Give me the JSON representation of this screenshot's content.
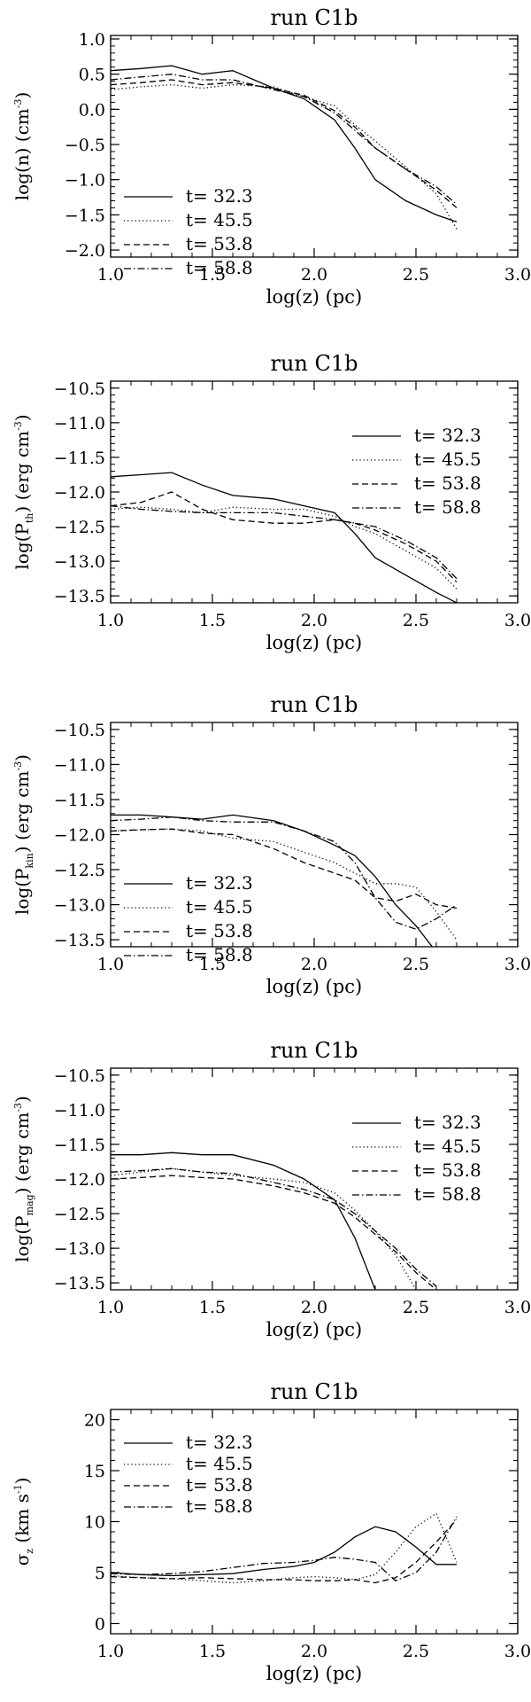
{
  "chart_data": [
    {
      "type": "line",
      "title": "run C1b",
      "xlabel": "log(z) (pc)",
      "ylabel": {
        "main": "log(n) (cm",
        "sup": "-3",
        "close": ")"
      },
      "xlim": [
        1.0,
        3.0
      ],
      "ylim": [
        -2.1,
        1.05
      ],
      "xticks": [
        1.0,
        1.5,
        2.0,
        2.5,
        3.0
      ],
      "xtick_labels": [
        "1.0",
        "1.5",
        "2.0",
        "2.5",
        "3.0"
      ],
      "yticks": [
        1.0,
        0.5,
        0.0,
        -0.5,
        -1.0,
        -1.5,
        -2.0
      ],
      "ytick_labels": [
        "1.0",
        "0.5",
        "0.0",
        "−0.5",
        "−1.0",
        "−1.5",
        "−2.0"
      ],
      "legend_placement": "lower-left",
      "series": [
        {
          "name": "t= 32.3",
          "style": "solid",
          "x": [
            1.0,
            1.15,
            1.3,
            1.45,
            1.6,
            1.8,
            1.95,
            2.1,
            2.2,
            2.3,
            2.45,
            2.6,
            2.7
          ],
          "y": [
            0.55,
            0.58,
            0.62,
            0.5,
            0.55,
            0.3,
            0.15,
            -0.15,
            -0.55,
            -1.0,
            -1.3,
            -1.5,
            -1.6
          ]
        },
        {
          "name": "t= 45.5",
          "style": "dotted",
          "x": [
            1.0,
            1.15,
            1.3,
            1.45,
            1.6,
            1.8,
            1.95,
            2.1,
            2.2,
            2.3,
            2.45,
            2.6,
            2.7
          ],
          "y": [
            0.28,
            0.32,
            0.35,
            0.3,
            0.35,
            0.32,
            0.18,
            0.05,
            -0.22,
            -0.45,
            -0.82,
            -1.2,
            -1.7
          ]
        },
        {
          "name": "t= 53.8",
          "style": "dashed",
          "x": [
            1.0,
            1.15,
            1.3,
            1.45,
            1.6,
            1.8,
            1.95,
            2.1,
            2.2,
            2.3,
            2.45,
            2.6,
            2.7
          ],
          "y": [
            0.35,
            0.38,
            0.42,
            0.35,
            0.38,
            0.3,
            0.2,
            -0.02,
            -0.25,
            -0.55,
            -0.85,
            -1.15,
            -1.4
          ]
        },
        {
          "name": "t= 58.8",
          "style": "dashdot",
          "x": [
            1.0,
            1.15,
            1.3,
            1.45,
            1.6,
            1.8,
            1.95,
            2.1,
            2.2,
            2.3,
            2.45,
            2.6,
            2.7
          ],
          "y": [
            0.42,
            0.46,
            0.5,
            0.42,
            0.42,
            0.28,
            0.18,
            -0.05,
            -0.3,
            -0.55,
            -0.85,
            -1.1,
            -1.35
          ]
        }
      ]
    },
    {
      "type": "line",
      "title": "run C1b",
      "xlabel": "log(z) (pc)",
      "ylabel": {
        "main": "log(P",
        "sub": "th",
        "mid": ") (erg cm",
        "sup": "-3",
        "close": ")"
      },
      "xlim": [
        1.0,
        3.0
      ],
      "ylim": [
        -13.6,
        -10.4
      ],
      "xticks": [
        1.0,
        1.5,
        2.0,
        2.5,
        3.0
      ],
      "xtick_labels": [
        "1.0",
        "1.5",
        "2.0",
        "2.5",
        "3.0"
      ],
      "yticks": [
        -10.5,
        -11.0,
        -11.5,
        -12.0,
        -12.5,
        -13.0,
        -13.5
      ],
      "ytick_labels": [
        "−10.5",
        "−11.0",
        "−11.5",
        "−12.0",
        "−12.5",
        "−13.0",
        "−13.5"
      ],
      "legend_placement": "upper-right",
      "series": [
        {
          "name": "t= 32.3",
          "style": "solid",
          "x": [
            1.0,
            1.15,
            1.3,
            1.45,
            1.6,
            1.8,
            1.95,
            2.1,
            2.2,
            2.3,
            2.45,
            2.6,
            2.7
          ],
          "y": [
            -11.78,
            -11.75,
            -11.72,
            -11.9,
            -12.05,
            -12.1,
            -12.2,
            -12.3,
            -12.6,
            -12.95,
            -13.2,
            -13.45,
            -13.6
          ]
        },
        {
          "name": "t= 45.5",
          "style": "dotted",
          "x": [
            1.0,
            1.15,
            1.3,
            1.45,
            1.6,
            1.8,
            1.95,
            2.1,
            2.2,
            2.3,
            2.45,
            2.6,
            2.7
          ],
          "y": [
            -12.25,
            -12.22,
            -12.25,
            -12.3,
            -12.22,
            -12.25,
            -12.25,
            -12.35,
            -12.5,
            -12.6,
            -12.85,
            -13.1,
            -13.4
          ]
        },
        {
          "name": "t= 53.8",
          "style": "dashed",
          "x": [
            1.0,
            1.15,
            1.3,
            1.45,
            1.6,
            1.8,
            1.95,
            2.1,
            2.2,
            2.3,
            2.45,
            2.6,
            2.7
          ],
          "y": [
            -12.2,
            -12.15,
            -12.0,
            -12.25,
            -12.4,
            -12.45,
            -12.45,
            -12.4,
            -12.45,
            -12.55,
            -12.75,
            -13.0,
            -13.3
          ]
        },
        {
          "name": "t= 58.8",
          "style": "dashdot",
          "x": [
            1.0,
            1.15,
            1.3,
            1.45,
            1.6,
            1.8,
            1.95,
            2.1,
            2.2,
            2.3,
            2.45,
            2.6,
            2.7
          ],
          "y": [
            -12.2,
            -12.25,
            -12.28,
            -12.3,
            -12.3,
            -12.3,
            -12.35,
            -12.4,
            -12.45,
            -12.5,
            -12.7,
            -12.95,
            -13.25
          ]
        }
      ]
    },
    {
      "type": "line",
      "title": "run C1b",
      "xlabel": "log(z) (pc)",
      "ylabel": {
        "main": "log(P",
        "sub": "kin",
        "mid": ") (erg cm",
        "sup": "-3",
        "close": ")"
      },
      "xlim": [
        1.0,
        3.0
      ],
      "ylim": [
        -13.6,
        -10.4
      ],
      "xticks": [
        1.0,
        1.5,
        2.0,
        2.5,
        3.0
      ],
      "xtick_labels": [
        "1.0",
        "1.5",
        "2.0",
        "2.5",
        "3.0"
      ],
      "yticks": [
        -10.5,
        -11.0,
        -11.5,
        -12.0,
        -12.5,
        -13.0,
        -13.5
      ],
      "ytick_labels": [
        "−10.5",
        "−11.0",
        "−11.5",
        "−12.0",
        "−12.5",
        "−13.0",
        "−13.5"
      ],
      "legend_placement": "lower-left",
      "series": [
        {
          "name": "t= 32.3",
          "style": "solid",
          "x": [
            1.0,
            1.15,
            1.3,
            1.45,
            1.6,
            1.8,
            1.95,
            2.1,
            2.2,
            2.3,
            2.4,
            2.5,
            2.58
          ],
          "y": [
            -11.72,
            -11.72,
            -11.75,
            -11.78,
            -11.72,
            -11.8,
            -11.95,
            -12.15,
            -12.3,
            -12.6,
            -13.0,
            -13.3,
            -13.6
          ]
        },
        {
          "name": "t= 45.5",
          "style": "dotted",
          "x": [
            1.0,
            1.15,
            1.3,
            1.45,
            1.6,
            1.8,
            1.95,
            2.1,
            2.2,
            2.3,
            2.4,
            2.5,
            2.6,
            2.7
          ],
          "y": [
            -11.95,
            -11.93,
            -11.92,
            -11.95,
            -12.05,
            -12.1,
            -12.25,
            -12.4,
            -12.55,
            -12.7,
            -12.7,
            -12.75,
            -13.1,
            -13.5
          ]
        },
        {
          "name": "t= 53.8",
          "style": "dashed",
          "x": [
            1.0,
            1.15,
            1.3,
            1.45,
            1.6,
            1.8,
            1.95,
            2.1,
            2.2,
            2.3,
            2.4,
            2.5,
            2.6,
            2.7
          ],
          "y": [
            -11.95,
            -11.93,
            -11.92,
            -11.98,
            -12.0,
            -12.2,
            -12.4,
            -12.55,
            -12.65,
            -12.9,
            -12.95,
            -12.85,
            -13.0,
            -13.05
          ]
        },
        {
          "name": "t= 58.8",
          "style": "dashdot",
          "x": [
            1.0,
            1.15,
            1.3,
            1.45,
            1.6,
            1.8,
            1.95,
            2.1,
            2.2,
            2.3,
            2.4,
            2.5,
            2.6,
            2.7
          ],
          "y": [
            -11.8,
            -11.78,
            -11.75,
            -11.8,
            -11.82,
            -11.82,
            -11.95,
            -12.1,
            -12.4,
            -12.9,
            -13.25,
            -13.35,
            -13.2,
            -13.0
          ]
        }
      ]
    },
    {
      "type": "line",
      "title": "run C1b",
      "xlabel": "log(z) (pc)",
      "ylabel": {
        "main": "log(P",
        "sub": "mag",
        "mid": ") (erg cm",
        "sup": "-3",
        "close": ")"
      },
      "xlim": [
        1.0,
        3.0
      ],
      "ylim": [
        -13.6,
        -10.4
      ],
      "xticks": [
        1.0,
        1.5,
        2.0,
        2.5,
        3.0
      ],
      "xtick_labels": [
        "1.0",
        "1.5",
        "2.0",
        "2.5",
        "3.0"
      ],
      "yticks": [
        -10.5,
        -11.0,
        -11.5,
        -12.0,
        -12.5,
        -13.0,
        -13.5
      ],
      "ytick_labels": [
        "−10.5",
        "−11.0",
        "−11.5",
        "−12.0",
        "−12.5",
        "−13.0",
        "−13.5"
      ],
      "legend_placement": "upper-right",
      "series": [
        {
          "name": "t= 32.3",
          "style": "solid",
          "x": [
            1.0,
            1.15,
            1.3,
            1.45,
            1.6,
            1.8,
            1.95,
            2.1,
            2.2,
            2.3
          ],
          "y": [
            -11.65,
            -11.65,
            -11.62,
            -11.65,
            -11.65,
            -11.8,
            -12.0,
            -12.3,
            -12.85,
            -13.6
          ]
        },
        {
          "name": "t= 45.5",
          "style": "dotted",
          "x": [
            1.0,
            1.15,
            1.3,
            1.45,
            1.6,
            1.8,
            1.95,
            2.1,
            2.2,
            2.3,
            2.4,
            2.5
          ],
          "y": [
            -11.95,
            -11.9,
            -11.85,
            -11.9,
            -11.95,
            -12.0,
            -12.05,
            -12.2,
            -12.45,
            -12.75,
            -13.1,
            -13.6
          ]
        },
        {
          "name": "t= 53.8",
          "style": "dashed",
          "x": [
            1.0,
            1.15,
            1.3,
            1.45,
            1.6,
            1.8,
            1.95,
            2.1,
            2.2,
            2.3,
            2.4,
            2.5,
            2.6
          ],
          "y": [
            -12.0,
            -11.98,
            -11.95,
            -11.98,
            -12.0,
            -12.1,
            -12.2,
            -12.35,
            -12.55,
            -12.8,
            -13.05,
            -13.35,
            -13.6
          ]
        },
        {
          "name": "t= 58.8",
          "style": "dashdot",
          "x": [
            1.0,
            1.15,
            1.3,
            1.45,
            1.6,
            1.8,
            1.95,
            2.1,
            2.2,
            2.3,
            2.4,
            2.5,
            2.6
          ],
          "y": [
            -11.9,
            -11.88,
            -11.85,
            -11.9,
            -11.92,
            -12.05,
            -12.15,
            -12.3,
            -12.5,
            -12.75,
            -13.0,
            -13.3,
            -13.55
          ]
        }
      ]
    },
    {
      "type": "line",
      "title": "run C1b",
      "xlabel": "log(z) (pc)",
      "ylabel": {
        "main": "σ",
        "sub": "z",
        "mid": " (km s",
        "sup": "-1",
        "close": ")"
      },
      "xlim": [
        1.0,
        3.0
      ],
      "ylim": [
        -1,
        21
      ],
      "xticks": [
        1.0,
        1.5,
        2.0,
        2.5,
        3.0
      ],
      "xtick_labels": [
        "1.0",
        "1.5",
        "2.0",
        "2.5",
        "3.0"
      ],
      "yticks": [
        20,
        15,
        10,
        5,
        0
      ],
      "ytick_labels": [
        "20",
        "15",
        "10",
        "5",
        "0"
      ],
      "legend_placement": "upper-left",
      "series": [
        {
          "name": "t= 32.3",
          "style": "solid",
          "x": [
            1.0,
            1.15,
            1.3,
            1.45,
            1.6,
            1.75,
            1.9,
            2.0,
            2.1,
            2.2,
            2.3,
            2.4,
            2.5,
            2.6,
            2.7
          ],
          "y": [
            5.0,
            4.8,
            4.7,
            4.8,
            4.9,
            5.3,
            5.6,
            6.0,
            7.0,
            8.5,
            9.5,
            9.0,
            7.5,
            5.8,
            5.8
          ]
        },
        {
          "name": "t= 45.5",
          "style": "dotted",
          "x": [
            1.0,
            1.15,
            1.3,
            1.45,
            1.6,
            1.75,
            1.9,
            2.0,
            2.1,
            2.2,
            2.3,
            2.4,
            2.5,
            2.6,
            2.7
          ],
          "y": [
            4.7,
            4.5,
            4.4,
            4.2,
            4.0,
            4.2,
            4.5,
            4.6,
            4.5,
            4.3,
            4.8,
            7.0,
            9.5,
            10.8,
            6.0
          ]
        },
        {
          "name": "t= 53.8",
          "style": "dashed",
          "x": [
            1.0,
            1.15,
            1.3,
            1.45,
            1.6,
            1.75,
            1.9,
            2.0,
            2.1,
            2.2,
            2.3,
            2.4,
            2.5,
            2.6,
            2.7
          ],
          "y": [
            4.6,
            4.5,
            4.4,
            4.5,
            4.4,
            4.3,
            4.3,
            4.2,
            4.2,
            4.3,
            4.0,
            4.5,
            6.0,
            8.0,
            10.2
          ]
        },
        {
          "name": "t= 58.8",
          "style": "dashdot",
          "x": [
            1.0,
            1.15,
            1.3,
            1.45,
            1.6,
            1.75,
            1.9,
            2.0,
            2.1,
            2.2,
            2.3,
            2.4,
            2.5,
            2.6,
            2.7
          ],
          "y": [
            4.9,
            4.8,
            4.9,
            5.1,
            5.5,
            5.9,
            6.0,
            6.2,
            6.5,
            6.3,
            6.0,
            4.2,
            5.0,
            7.0,
            10.5
          ]
        }
      ]
    }
  ]
}
